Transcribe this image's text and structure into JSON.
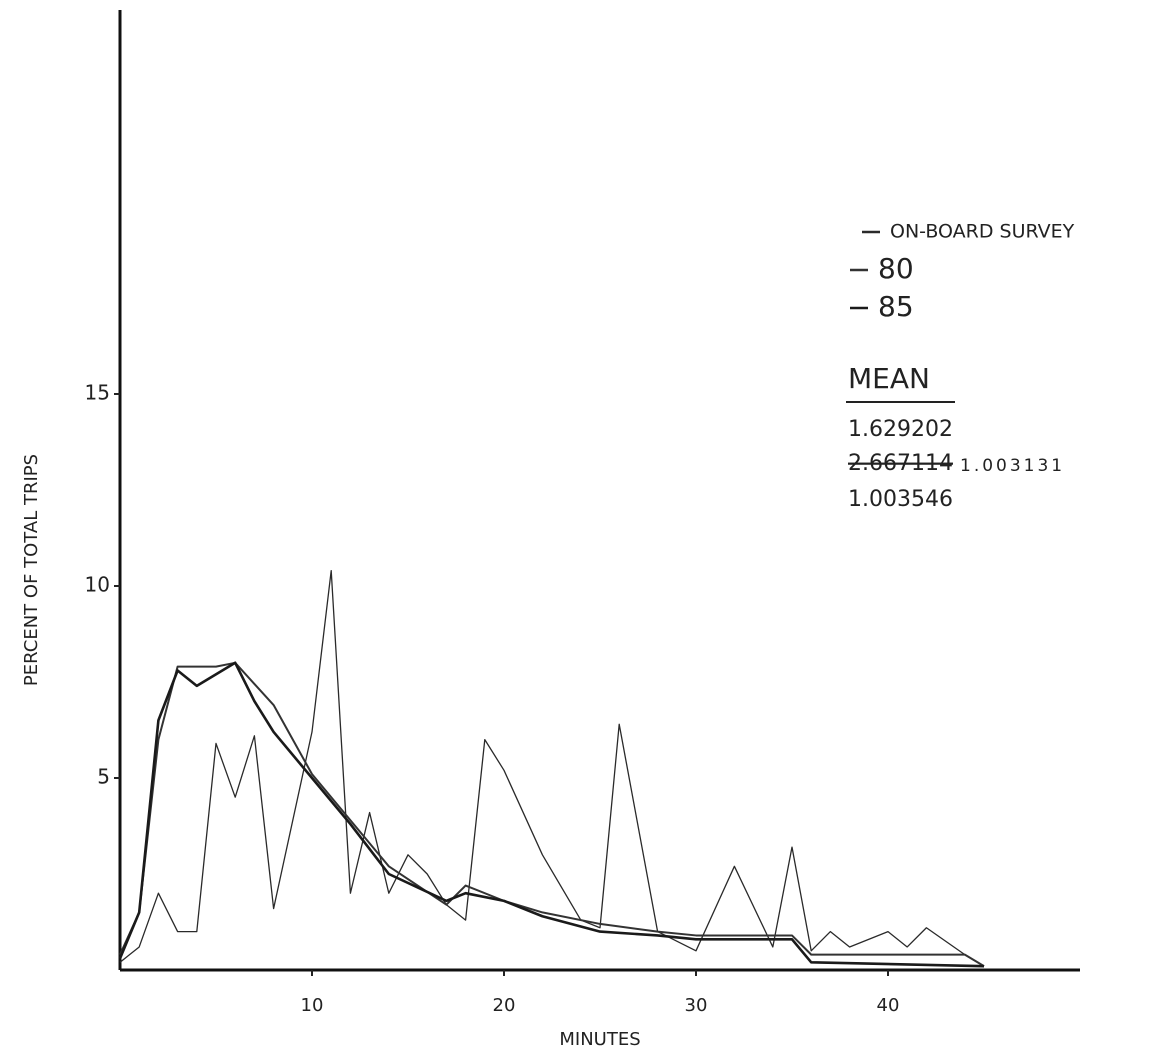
{
  "chart_data": {
    "type": "line",
    "xlabel": "MINUTES",
    "ylabel": "PERCENT OF TOTAL TRIPS",
    "xlim": [
      0,
      50
    ],
    "ylim": [
      0,
      25
    ],
    "xticks": [
      10,
      20,
      30,
      40
    ],
    "yticks": [
      5,
      10,
      15
    ],
    "grid": false,
    "legend": "right",
    "series": [
      {
        "name": "ON-BOARD SURVEY",
        "color": "#2a2a2a",
        "x": [
          0,
          1,
          2,
          3,
          4,
          5,
          6,
          7,
          8,
          10,
          11,
          12,
          13,
          14,
          15,
          16,
          17,
          18,
          19,
          20,
          22,
          24,
          25,
          26,
          28,
          30,
          32,
          34,
          35,
          36,
          37,
          38,
          40,
          41,
          42,
          44,
          45
        ],
        "values": [
          0.2,
          0.6,
          2,
          1,
          1,
          5.9,
          4.5,
          6.1,
          1.6,
          6.2,
          10.4,
          2,
          4.1,
          2,
          3,
          2.5,
          1.7,
          1.3,
          6,
          5.2,
          3,
          1.3,
          1.1,
          6.4,
          1,
          0.5,
          2.7,
          0.6,
          3.2,
          0.5,
          1,
          0.6,
          1,
          0.6,
          1.1,
          0.4,
          0.1
        ]
      },
      {
        "name": "80",
        "color": "#333333",
        "x": [
          0,
          1,
          2,
          3,
          5,
          6,
          8,
          10,
          12,
          14,
          17,
          18,
          20,
          22,
          25,
          28,
          30,
          35,
          36,
          44,
          45
        ],
        "values": [
          0.4,
          1.5,
          6,
          7.9,
          7.9,
          8,
          6.9,
          5.1,
          3.9,
          2.7,
          1.7,
          2.2,
          1.8,
          1.5,
          1.2,
          1,
          0.9,
          0.9,
          0.4,
          0.4,
          0.1
        ]
      },
      {
        "name": "85",
        "color": "#1a1a1a",
        "x": [
          0,
          1,
          2,
          3,
          4,
          6,
          7,
          8,
          10,
          12,
          14,
          17,
          18,
          20,
          22,
          25,
          28,
          30,
          35,
          36,
          45
        ],
        "values": [
          0.3,
          1.5,
          6.5,
          7.8,
          7.4,
          8,
          7,
          6.2,
          5,
          3.8,
          2.5,
          1.8,
          2,
          1.8,
          1.4,
          1,
          0.9,
          0.8,
          0.8,
          0.2,
          0.1
        ]
      }
    ],
    "annotations": {
      "heading": "MEAN",
      "lines": [
        "1.629202",
        "2.667114",
        "1.003131",
        "1.003546"
      ]
    }
  }
}
